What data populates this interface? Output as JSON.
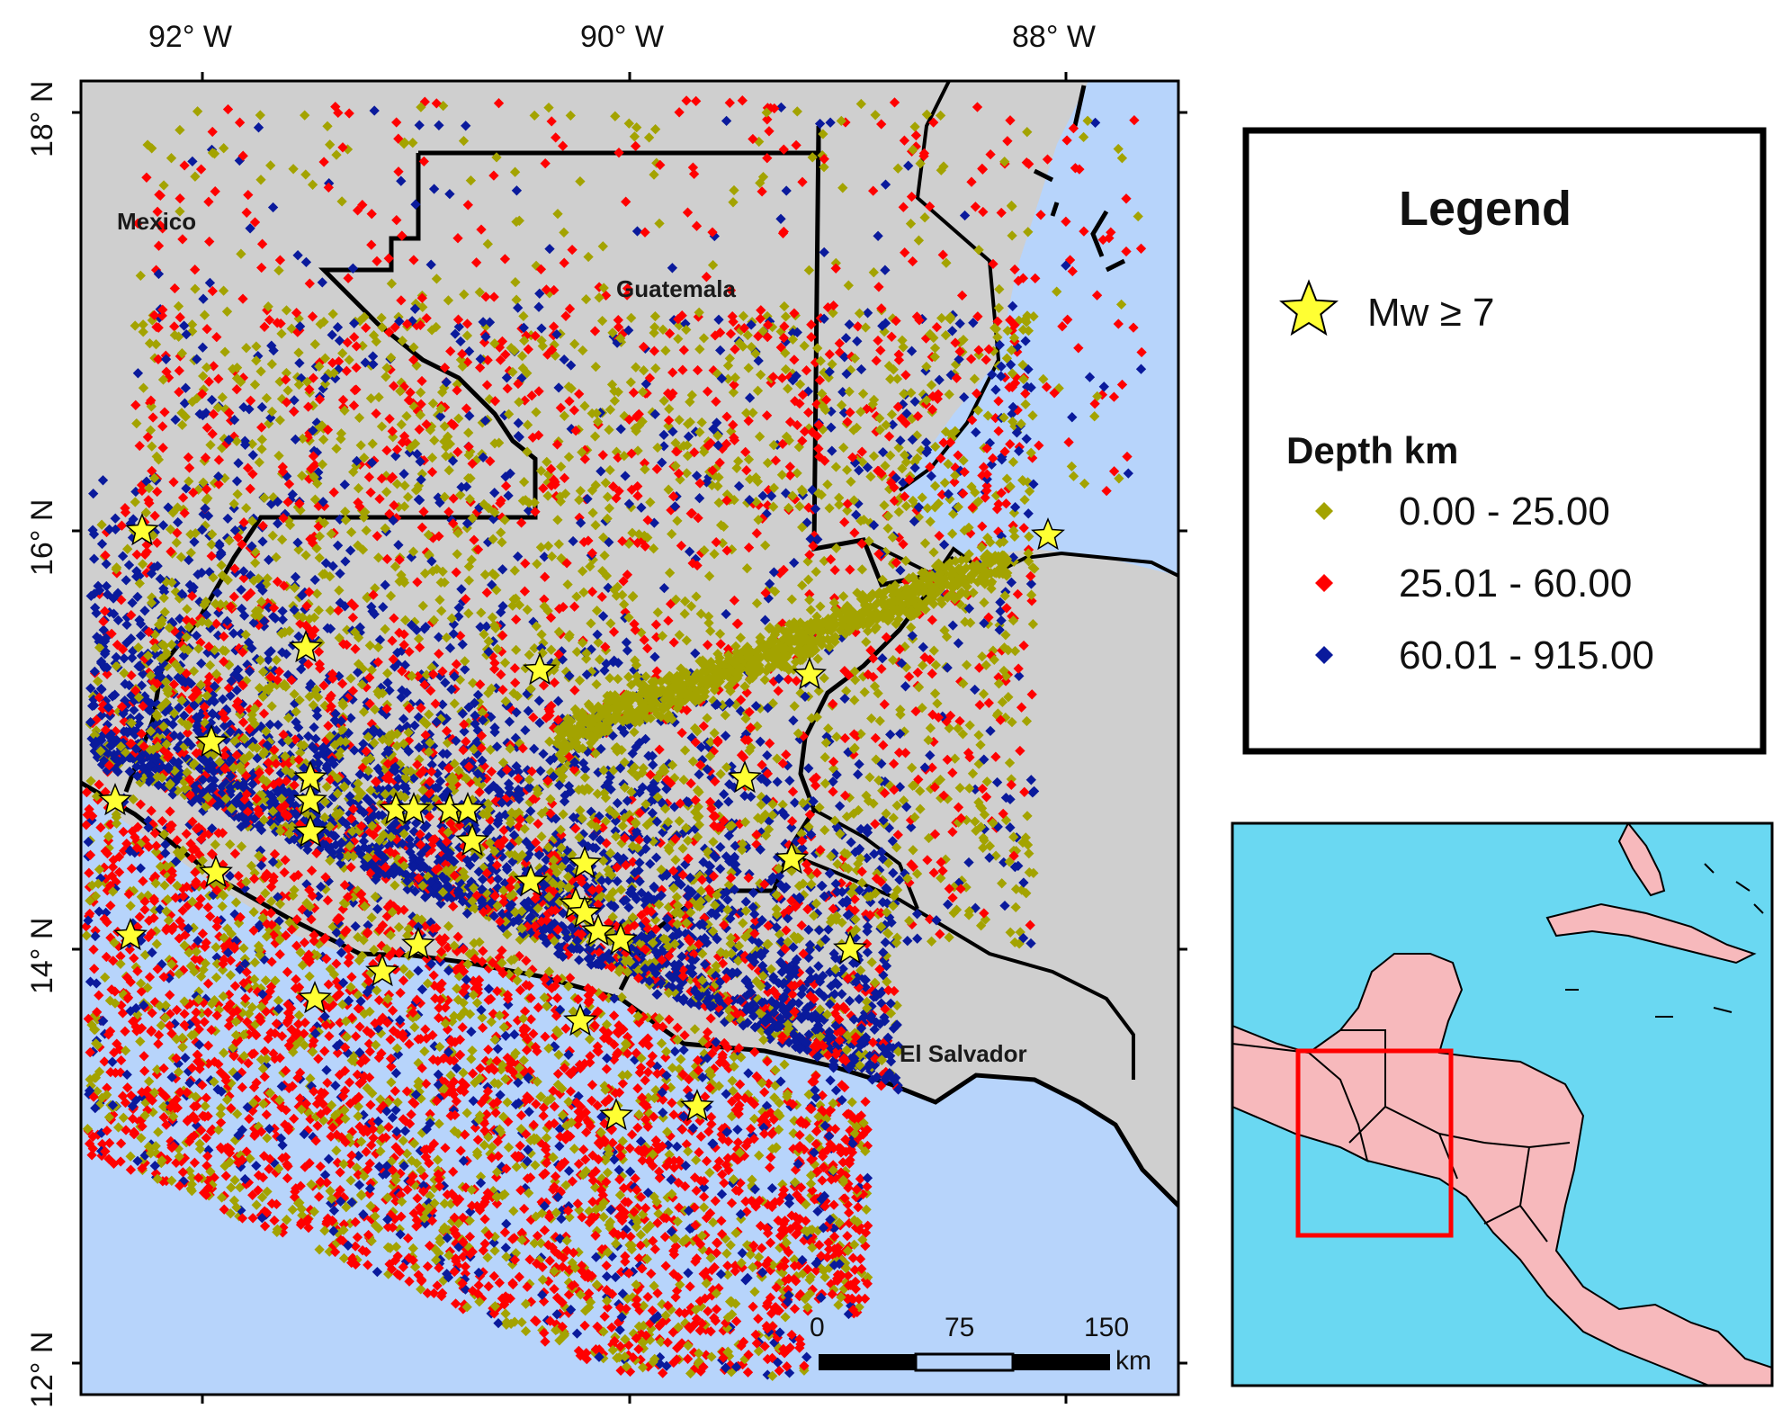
{
  "map": {
    "lon_ticks": [
      "92° W",
      "90° W",
      "88° W"
    ],
    "lat_ticks": [
      "18° N",
      "16° N",
      "14° N",
      "12° N"
    ],
    "countries": [
      "Mexico",
      "Guatemala",
      "El Salvador"
    ],
    "colors": {
      "ocean": "#b7d4fb",
      "land": "#cfcfcf",
      "border": "#000000"
    }
  },
  "legend": {
    "title": "Legend",
    "star_label": "Mw ≥ 7",
    "depth_title": "Depth km",
    "classes": [
      {
        "label": "0.00 - 25.00",
        "color": "#a3a300"
      },
      {
        "label": "25.01 - 60.00",
        "color": "#ff0000"
      },
      {
        "label": "60.01 - 915.00",
        "color": "#0a1a9c"
      }
    ],
    "star_color": "#ffff33"
  },
  "scale_bar": {
    "labels": [
      "0",
      "75",
      "150"
    ],
    "unit": "km"
  },
  "inset": {
    "colors": {
      "sea": "#6ad8f2",
      "land": "#f7b9bc",
      "box": "#ff0000"
    }
  }
}
